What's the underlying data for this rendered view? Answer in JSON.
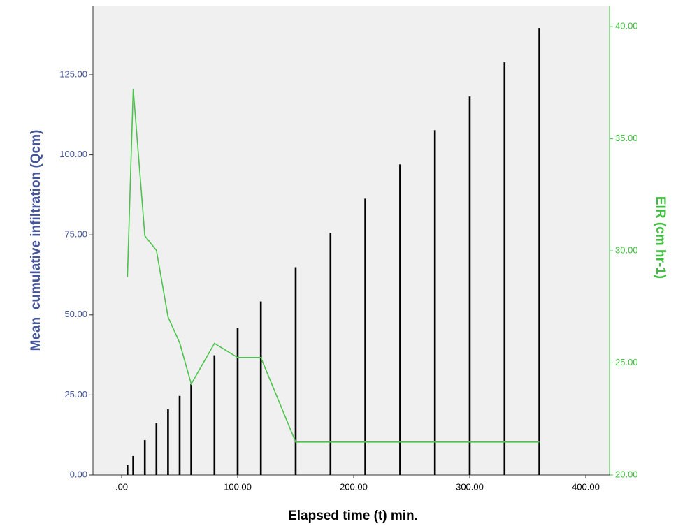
{
  "chart_data": {
    "type": "combo",
    "x_label": "Elapsed time (t) min.",
    "y_label": "Mean  cumulative infiltration (Qcm)",
    "y2_label": "EIR (cm hr-1)",
    "x": [
      5,
      10,
      20,
      30,
      40,
      50,
      60,
      80,
      100,
      120,
      150,
      180,
      210,
      240,
      270,
      300,
      330,
      360
    ],
    "series": [
      {
        "type": "bar",
        "color": "#000000",
        "values": [
          3.1,
          5.9,
          10.9,
          16.2,
          20.5,
          24.7,
          28.4,
          37.4,
          45.9,
          54.2,
          64.9,
          75.6,
          86.3,
          97.0,
          107.7,
          118.2,
          128.9,
          139.6
        ]
      },
      {
        "type": "line",
        "axis": "y2",
        "color": "#4cc44c",
        "values": [
          28.83,
          37.22,
          30.67,
          30.02,
          27.05,
          25.9,
          24.06,
          25.87,
          25.24,
          25.24,
          21.47,
          21.47,
          21.47,
          21.47,
          21.47,
          21.47,
          21.47,
          21.47
        ]
      }
    ],
    "xlim": [
      -24.7,
      420.5
    ],
    "xticks": [
      {
        "value": 0,
        "label": ".00"
      },
      {
        "value": 100,
        "label": "100.00"
      },
      {
        "value": 200,
        "label": "200.00"
      },
      {
        "value": 300,
        "label": "300.00"
      },
      {
        "value": 400,
        "label": "400.00"
      }
    ],
    "ylim": [
      0,
      146.6
    ],
    "yticks": [
      {
        "value": 0,
        "label": "0.00"
      },
      {
        "value": 25,
        "label": "25.00"
      },
      {
        "value": 50,
        "label": "50.00"
      },
      {
        "value": 75,
        "label": "75.00"
      },
      {
        "value": 100,
        "label": "100.00"
      },
      {
        "value": 125,
        "label": "125.00"
      }
    ],
    "y2lim": [
      20,
      40.94
    ],
    "y2ticks": [
      {
        "value": 20,
        "label": "20.00"
      },
      {
        "value": 25,
        "label": "25.00"
      },
      {
        "value": 30,
        "label": "30.00"
      },
      {
        "value": 35,
        "label": "35.00"
      },
      {
        "value": 40,
        "label": "40.00"
      }
    ],
    "y_color": "#44559b",
    "y2_color": "#3fbf3f",
    "background": "#f0f0f0"
  }
}
